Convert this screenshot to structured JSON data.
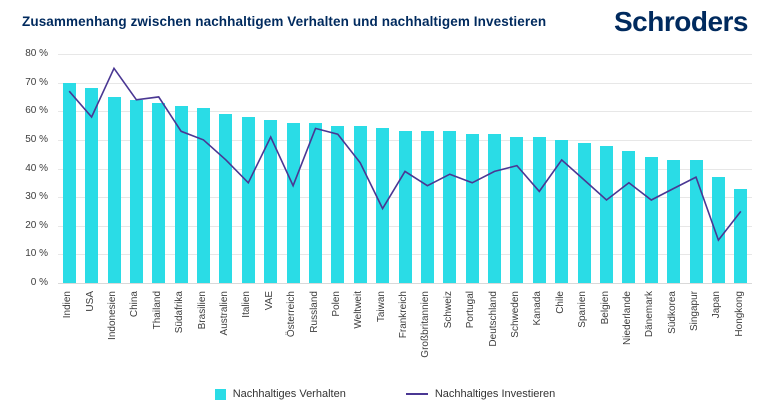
{
  "header": {
    "title": "Zusammenhang zwischen nachhaltigem Verhalten und nachhaltigem Investieren",
    "logo": "Schroders"
  },
  "colors": {
    "bar": "#2adce6",
    "line": "#4a3793",
    "brand_navy": "#002a5e",
    "axis_text": "#3d3d3d",
    "gridline": "#e7e7e7"
  },
  "chart_data": {
    "type": "bar",
    "subtype": "bar-with-line-overlay",
    "title": "Zusammenhang zwischen nachhaltigem Verhalten und nachhaltigem Investieren",
    "xlabel": "",
    "ylabel": "",
    "ylim": [
      0,
      80
    ],
    "ytick_step": 10,
    "yticks": [
      "0 %",
      "10 %",
      "20 %",
      "30 %",
      "40 %",
      "50 %",
      "60 %",
      "70 %",
      "80 %"
    ],
    "grid": true,
    "legend_position": "bottom",
    "categories": [
      "Indien",
      "USA",
      "Indonesien",
      "China",
      "Thailand",
      "Südafrika",
      "Brasilien",
      "Australien",
      "Italien",
      "VAE",
      "Österreich",
      "Russland",
      "Polen",
      "Weltweit",
      "Taiwan",
      "Frankreich",
      "Großbritannien",
      "Schweiz",
      "Portugal",
      "Deutschland",
      "Schweden",
      "Kanada",
      "Chile",
      "Spanien",
      "Belgien",
      "Niederlande",
      "Dänemark",
      "Südkorea",
      "Singapur",
      "Japan",
      "Hongkong"
    ],
    "series": [
      {
        "name": "Nachhaltiges Verhalten",
        "type": "bar",
        "color": "#2adce6",
        "values": [
          70,
          68,
          65,
          64,
          63,
          62,
          61,
          59,
          58,
          57,
          56,
          56,
          55,
          55,
          54,
          53,
          53,
          53,
          52,
          52,
          51,
          51,
          50,
          49,
          48,
          46,
          44,
          43,
          43,
          37,
          33
        ]
      },
      {
        "name": "Nachhaltiges Investieren",
        "type": "line",
        "color": "#4a3793",
        "values": [
          67,
          58,
          75,
          64,
          65,
          53,
          50,
          43,
          35,
          51,
          34,
          54,
          52,
          42,
          26,
          39,
          34,
          38,
          35,
          39,
          41,
          32,
          43,
          36,
          29,
          35,
          29,
          33,
          37,
          15,
          25
        ]
      }
    ]
  },
  "legend": {
    "bar_label": "Nachhaltiges Verhalten",
    "line_label": "Nachhaltiges Investieren"
  }
}
